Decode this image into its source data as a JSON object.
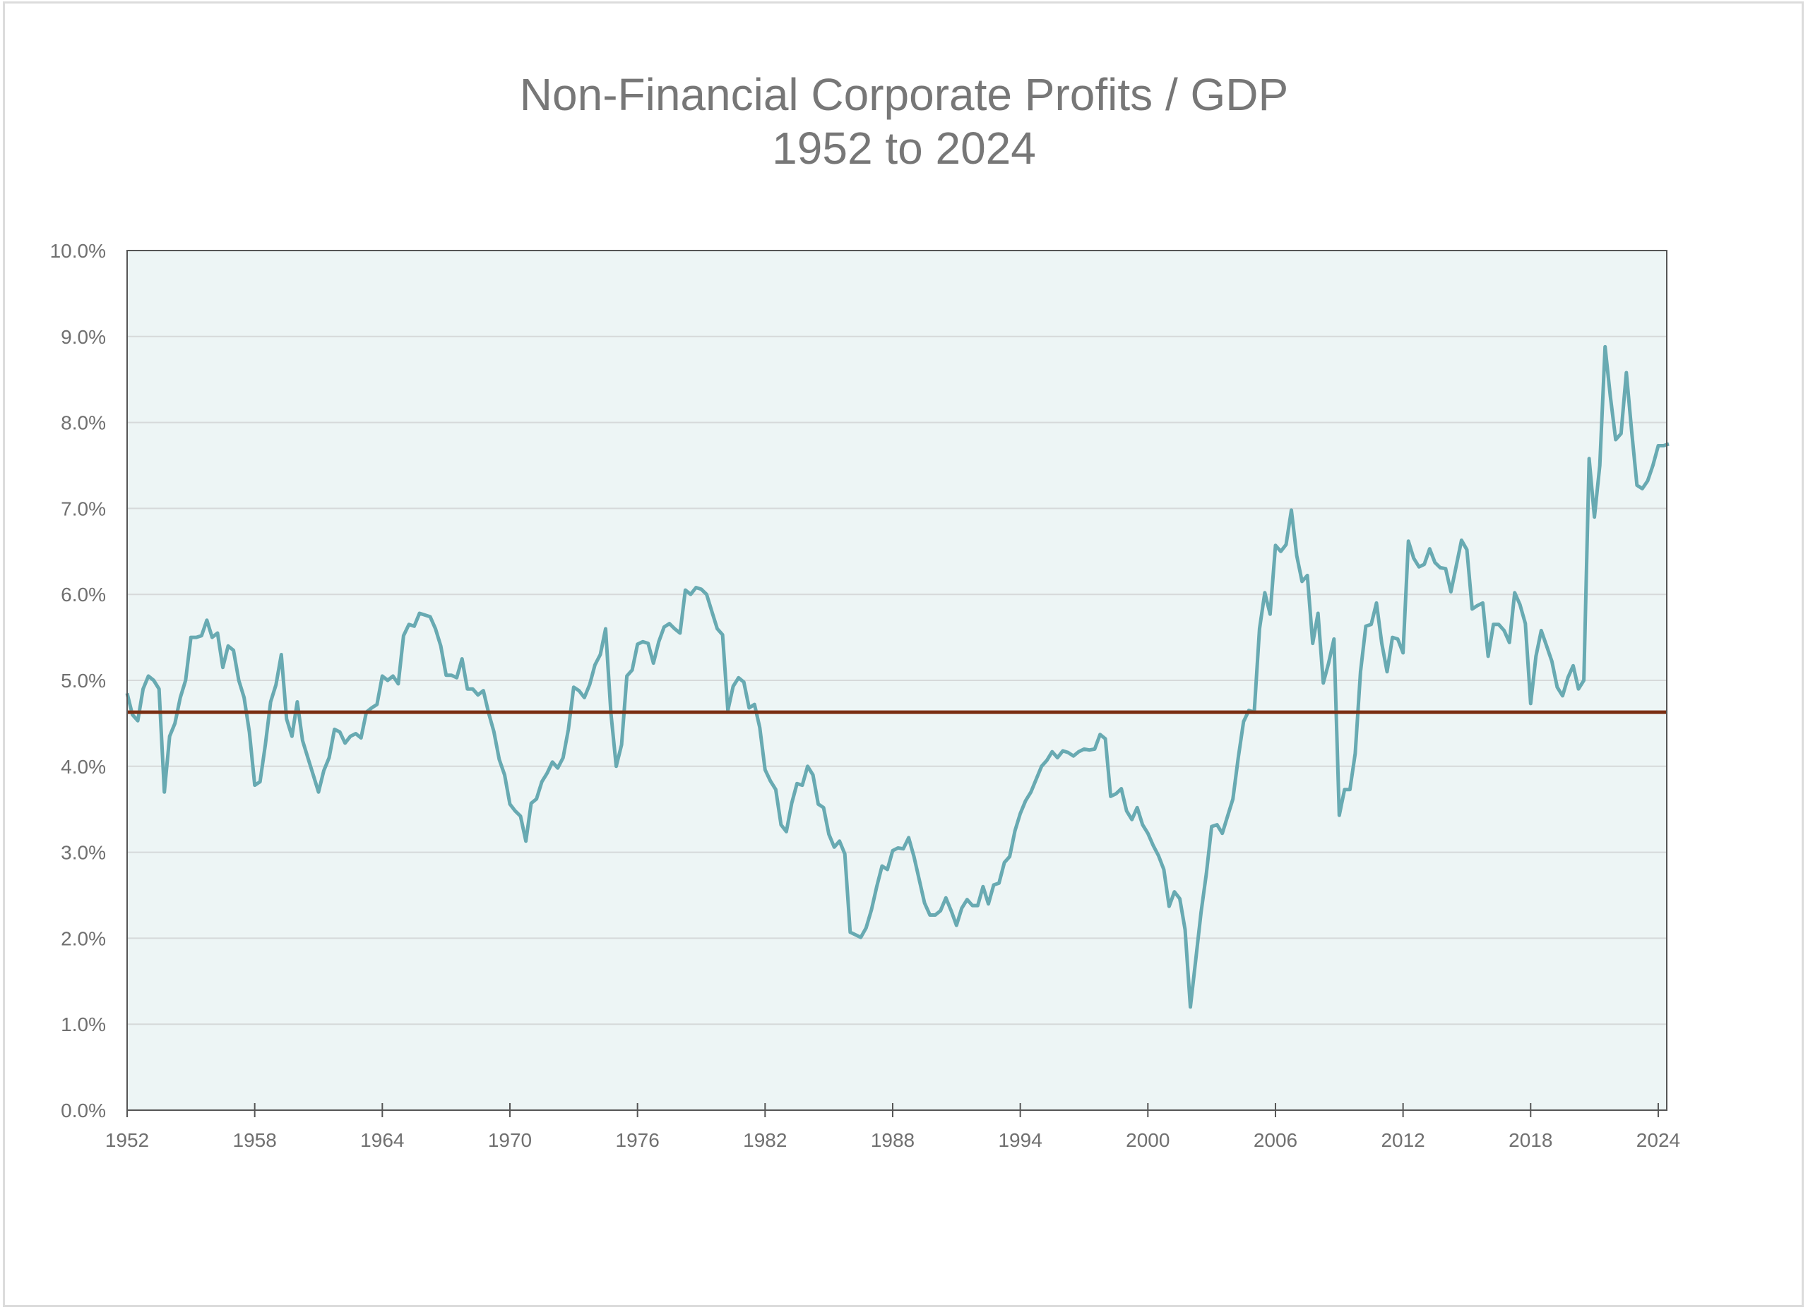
{
  "chart_data": {
    "type": "line",
    "title": "Non-Financial Corporate Profits  /  GDP",
    "subtitle": "1952 to 2024",
    "xlabel": "",
    "ylabel": "",
    "xlim": [
      1952,
      2024.4
    ],
    "ylim": [
      0,
      10
    ],
    "grid": true,
    "legend": "none",
    "y_ticks": [
      "0.0%",
      "1.0%",
      "2.0%",
      "3.0%",
      "4.0%",
      "5.0%",
      "6.0%",
      "7.0%",
      "8.0%",
      "9.0%",
      "10.0%"
    ],
    "y_tick_values": [
      0,
      1,
      2,
      3,
      4,
      5,
      6,
      7,
      8,
      9,
      10
    ],
    "x_ticks": [
      "1952",
      "1958",
      "1964",
      "1970",
      "1976",
      "1982",
      "1988",
      "1994",
      "2000",
      "2006",
      "2012",
      "2018",
      "2024"
    ],
    "x_tick_values": [
      1952,
      1958,
      1964,
      1970,
      1976,
      1982,
      1988,
      1994,
      2000,
      2006,
      2012,
      2018,
      2024
    ],
    "colors": {
      "series": "#68aab2",
      "mean": "#7a2e12",
      "plot_bg": "#edf5f5",
      "grid": "#d6d9da",
      "axis": "#555555",
      "text": "#777777"
    },
    "series": [
      {
        "name": "Non-Financial Corporate Profits / GDP (%)",
        "x_start": 1952.0,
        "x_step": 0.25,
        "values": [
          4.85,
          4.6,
          4.53,
          4.9,
          5.05,
          5.0,
          4.9,
          3.7,
          4.35,
          4.5,
          4.8,
          5.0,
          5.5,
          5.5,
          5.52,
          5.7,
          5.5,
          5.55,
          5.15,
          5.4,
          5.35,
          5.0,
          4.8,
          4.4,
          3.78,
          3.82,
          4.25,
          4.75,
          4.95,
          5.3,
          4.55,
          4.35,
          4.75,
          4.3,
          4.1,
          3.9,
          3.7,
          3.95,
          4.1,
          4.43,
          4.4,
          4.27,
          4.35,
          4.38,
          4.33,
          4.63,
          4.68,
          4.72,
          5.05,
          5.0,
          5.05,
          4.96,
          5.52,
          5.65,
          5.63,
          5.78,
          5.76,
          5.74,
          5.6,
          5.4,
          5.06,
          5.06,
          5.03,
          5.25,
          4.9,
          4.9,
          4.83,
          4.88,
          4.62,
          4.4,
          4.08,
          3.9,
          3.56,
          3.48,
          3.42,
          3.13,
          3.57,
          3.62,
          3.82,
          3.92,
          4.05,
          3.98,
          4.1,
          4.43,
          4.92,
          4.88,
          4.8,
          4.95,
          5.18,
          5.3,
          5.6,
          4.62,
          4.0,
          4.25,
          5.05,
          5.12,
          5.42,
          5.45,
          5.43,
          5.2,
          5.45,
          5.62,
          5.66,
          5.6,
          5.55,
          6.05,
          6.0,
          6.08,
          6.06,
          6.0,
          5.8,
          5.6,
          5.53,
          4.65,
          4.93,
          5.03,
          4.98,
          4.68,
          4.72,
          4.45,
          3.96,
          3.83,
          3.73,
          3.32,
          3.24,
          3.57,
          3.8,
          3.78,
          4.0,
          3.9,
          3.56,
          3.52,
          3.21,
          3.06,
          3.13,
          2.98,
          2.07,
          2.04,
          2.01,
          2.12,
          2.33,
          2.6,
          2.84,
          2.8,
          3.02,
          3.05,
          3.04,
          3.17,
          2.95,
          2.68,
          2.41,
          2.27,
          2.27,
          2.32,
          2.47,
          2.32,
          2.15,
          2.35,
          2.45,
          2.38,
          2.38,
          2.6,
          2.4,
          2.62,
          2.64,
          2.88,
          2.95,
          3.25,
          3.45,
          3.6,
          3.7,
          3.85,
          4.0,
          4.07,
          4.17,
          4.1,
          4.18,
          4.16,
          4.12,
          4.17,
          4.2,
          4.19,
          4.2,
          4.37,
          4.32,
          3.65,
          3.68,
          3.74,
          3.48,
          3.38,
          3.52,
          3.32,
          3.22,
          3.08,
          2.96,
          2.8,
          2.37,
          2.54,
          2.46,
          2.1,
          1.2,
          1.75,
          2.3,
          2.75,
          3.3,
          3.32,
          3.22,
          3.42,
          3.62,
          4.1,
          4.52,
          4.65,
          4.63,
          5.6,
          6.02,
          5.77,
          6.57,
          6.5,
          6.58,
          6.98,
          6.45,
          6.15,
          6.22,
          5.43,
          5.78,
          4.97,
          5.2,
          5.48,
          3.43,
          3.73,
          3.73,
          4.15,
          5.1,
          5.63,
          5.65,
          5.9,
          5.43,
          5.1,
          5.5,
          5.48,
          5.32,
          6.62,
          6.42,
          6.32,
          6.35,
          6.53,
          6.37,
          6.31,
          6.3,
          6.03,
          6.33,
          6.63,
          6.52,
          5.83,
          5.87,
          5.9,
          5.28,
          5.65,
          5.65,
          5.58,
          5.44,
          6.02,
          5.88,
          5.66,
          4.73,
          5.28,
          5.58,
          5.4,
          5.22,
          4.92,
          4.82,
          5.03,
          5.17,
          4.9,
          5.0,
          7.58,
          6.9,
          7.5,
          8.88,
          8.3,
          7.8,
          7.87,
          8.58,
          7.9,
          7.27,
          7.23,
          7.32,
          7.5,
          7.73,
          7.73,
          7.75
        ]
      },
      {
        "name": "Mean",
        "value": 4.63
      }
    ]
  }
}
